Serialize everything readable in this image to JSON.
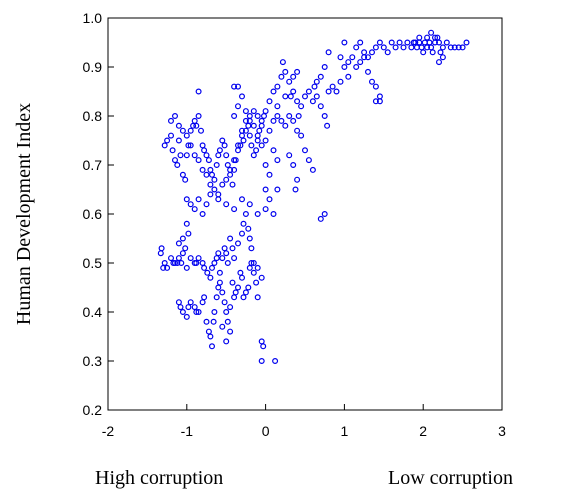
{
  "chart_data": {
    "type": "scatter",
    "ylabel": "Human Development Index",
    "xlim": [
      -2,
      3
    ],
    "ylim": [
      0.2,
      1.0
    ],
    "xticks": [
      "-2",
      "-1",
      "0",
      "1",
      "2",
      "3"
    ],
    "yticks": [
      "0.2",
      "0.3",
      "0.4",
      "0.5",
      "0.6",
      "0.7",
      "0.8",
      "0.9",
      "1.0"
    ],
    "grid": false,
    "marker_color": "#0000ee",
    "below_left_label": "High corruption",
    "below_right_label": "Low corruption",
    "points": [
      [
        -1.33,
        0.52
      ],
      [
        -1.3,
        0.49
      ],
      [
        -1.32,
        0.53
      ],
      [
        -1.28,
        0.5
      ],
      [
        -1.25,
        0.49
      ],
      [
        -1.2,
        0.51
      ],
      [
        -1.17,
        0.5
      ],
      [
        -1.15,
        0.5
      ],
      [
        -1.12,
        0.5
      ],
      [
        -1.1,
        0.51
      ],
      [
        -1.07,
        0.5
      ],
      [
        -1.05,
        0.52
      ],
      [
        -1.0,
        0.49
      ],
      [
        -0.95,
        0.51
      ],
      [
        -0.9,
        0.5
      ],
      [
        -0.88,
        0.5
      ],
      [
        -0.85,
        0.51
      ],
      [
        -0.8,
        0.5
      ],
      [
        -0.78,
        0.49
      ],
      [
        -0.74,
        0.48
      ],
      [
        -1.1,
        0.54
      ],
      [
        -1.05,
        0.55
      ],
      [
        -1.02,
        0.53
      ],
      [
        -1.0,
        0.58
      ],
      [
        -0.98,
        0.56
      ],
      [
        -1.1,
        0.42
      ],
      [
        -1.08,
        0.41
      ],
      [
        -1.05,
        0.4
      ],
      [
        -1.0,
        0.39
      ],
      [
        -0.98,
        0.41
      ],
      [
        -0.95,
        0.42
      ],
      [
        -0.9,
        0.41
      ],
      [
        -0.88,
        0.4
      ],
      [
        -0.85,
        0.4
      ],
      [
        -0.8,
        0.42
      ],
      [
        -0.78,
        0.43
      ],
      [
        -0.75,
        0.38
      ],
      [
        -0.72,
        0.36
      ],
      [
        -0.7,
        0.35
      ],
      [
        -0.68,
        0.33
      ],
      [
        -0.66,
        0.38
      ],
      [
        -0.65,
        0.4
      ],
      [
        -0.62,
        0.43
      ],
      [
        -0.6,
        0.45
      ],
      [
        -0.58,
        0.46
      ],
      [
        -0.55,
        0.44
      ],
      [
        -0.52,
        0.42
      ],
      [
        -0.5,
        0.4
      ],
      [
        -0.48,
        0.38
      ],
      [
        -0.45,
        0.41
      ],
      [
        -0.42,
        0.46
      ],
      [
        -0.4,
        0.43
      ],
      [
        -0.38,
        0.44
      ],
      [
        -0.35,
        0.45
      ],
      [
        -0.32,
        0.48
      ],
      [
        -0.3,
        0.47
      ],
      [
        -0.28,
        0.43
      ],
      [
        -0.25,
        0.44
      ],
      [
        -0.22,
        0.45
      ],
      [
        -0.2,
        0.49
      ],
      [
        -0.18,
        0.5
      ],
      [
        -0.15,
        0.48
      ],
      [
        -0.12,
        0.46
      ],
      [
        -0.1,
        0.43
      ],
      [
        -0.55,
        0.37
      ],
      [
        -0.5,
        0.34
      ],
      [
        -0.45,
        0.36
      ],
      [
        -0.7,
        0.47
      ],
      [
        -0.68,
        0.49
      ],
      [
        -0.65,
        0.5
      ],
      [
        -0.62,
        0.51
      ],
      [
        -0.6,
        0.52
      ],
      [
        -0.58,
        0.48
      ],
      [
        -0.55,
        0.51
      ],
      [
        -0.52,
        0.53
      ],
      [
        -0.5,
        0.52
      ],
      [
        -0.48,
        0.5
      ],
      [
        -0.45,
        0.55
      ],
      [
        -0.42,
        0.53
      ],
      [
        -0.4,
        0.51
      ],
      [
        -0.35,
        0.54
      ],
      [
        -0.3,
        0.56
      ],
      [
        -0.28,
        0.58
      ],
      [
        -0.25,
        0.6
      ],
      [
        -0.22,
        0.57
      ],
      [
        -0.2,
        0.55
      ],
      [
        -0.18,
        0.53
      ],
      [
        -0.15,
        0.5
      ],
      [
        -0.1,
        0.49
      ],
      [
        -0.05,
        0.47
      ],
      [
        -0.05,
        0.34
      ],
      [
        -0.03,
        0.33
      ],
      [
        -0.05,
        0.3
      ],
      [
        0.12,
        0.3
      ],
      [
        -1.28,
        0.74
      ],
      [
        -1.25,
        0.75
      ],
      [
        -1.2,
        0.76
      ],
      [
        -1.18,
        0.73
      ],
      [
        -1.15,
        0.71
      ],
      [
        -1.12,
        0.7
      ],
      [
        -1.1,
        0.75
      ],
      [
        -1.08,
        0.72
      ],
      [
        -1.05,
        0.68
      ],
      [
        -1.02,
        0.67
      ],
      [
        -1.0,
        0.72
      ],
      [
        -0.98,
        0.74
      ],
      [
        -0.95,
        0.77
      ],
      [
        -0.92,
        0.78
      ],
      [
        -0.9,
        0.79
      ],
      [
        -0.88,
        0.78
      ],
      [
        -0.85,
        0.8
      ],
      [
        -0.82,
        0.77
      ],
      [
        -0.8,
        0.74
      ],
      [
        -0.78,
        0.73
      ],
      [
        -0.75,
        0.72
      ],
      [
        -0.72,
        0.71
      ],
      [
        -0.7,
        0.69
      ],
      [
        -0.68,
        0.68
      ],
      [
        -0.65,
        0.67
      ],
      [
        -0.62,
        0.7
      ],
      [
        -0.6,
        0.72
      ],
      [
        -0.58,
        0.73
      ],
      [
        -0.55,
        0.75
      ],
      [
        -0.52,
        0.74
      ],
      [
        -0.5,
        0.72
      ],
      [
        -0.48,
        0.7
      ],
      [
        -0.45,
        0.68
      ],
      [
        -0.42,
        0.66
      ],
      [
        -0.4,
        0.69
      ],
      [
        -0.38,
        0.71
      ],
      [
        -0.35,
        0.73
      ],
      [
        -0.32,
        0.74
      ],
      [
        -0.3,
        0.76
      ],
      [
        -0.28,
        0.75
      ],
      [
        -0.25,
        0.77
      ],
      [
        -0.22,
        0.78
      ],
      [
        -0.2,
        0.76
      ],
      [
        -0.18,
        0.74
      ],
      [
        -0.15,
        0.72
      ],
      [
        -0.12,
        0.73
      ],
      [
        -0.1,
        0.75
      ],
      [
        -0.08,
        0.77
      ],
      [
        -0.05,
        0.78
      ],
      [
        -0.02,
        0.8
      ],
      [
        -1.2,
        0.79
      ],
      [
        -1.15,
        0.8
      ],
      [
        -1.1,
        0.78
      ],
      [
        -1.05,
        0.77
      ],
      [
        -1.0,
        0.76
      ],
      [
        -0.95,
        0.74
      ],
      [
        -0.9,
        0.72
      ],
      [
        -0.85,
        0.71
      ],
      [
        -0.8,
        0.69
      ],
      [
        -0.75,
        0.68
      ],
      [
        -0.7,
        0.66
      ],
      [
        -0.65,
        0.65
      ],
      [
        -0.6,
        0.64
      ],
      [
        -0.55,
        0.66
      ],
      [
        -0.5,
        0.67
      ],
      [
        -0.45,
        0.69
      ],
      [
        -0.4,
        0.71
      ],
      [
        -0.35,
        0.74
      ],
      [
        -0.3,
        0.77
      ],
      [
        -0.25,
        0.79
      ],
      [
        -0.2,
        0.8
      ],
      [
        -0.15,
        0.81
      ],
      [
        -0.1,
        0.8
      ],
      [
        -0.05,
        0.79
      ],
      [
        0.0,
        0.81
      ],
      [
        -1.0,
        0.63
      ],
      [
        -0.95,
        0.62
      ],
      [
        -0.9,
        0.61
      ],
      [
        -0.85,
        0.63
      ],
      [
        -0.8,
        0.6
      ],
      [
        -0.75,
        0.62
      ],
      [
        -0.7,
        0.64
      ],
      [
        -0.6,
        0.63
      ],
      [
        -0.5,
        0.62
      ],
      [
        -0.4,
        0.61
      ],
      [
        -0.3,
        0.63
      ],
      [
        -0.2,
        0.62
      ],
      [
        -0.1,
        0.6
      ],
      [
        0.0,
        0.61
      ],
      [
        0.05,
        0.63
      ],
      [
        0.1,
        0.6
      ],
      [
        0.15,
        0.65
      ],
      [
        -0.85,
        0.85
      ],
      [
        -0.4,
        0.86
      ],
      [
        -0.35,
        0.86
      ],
      [
        -0.4,
        0.8
      ],
      [
        -0.35,
        0.82
      ],
      [
        -0.3,
        0.84
      ],
      [
        -0.25,
        0.81
      ],
      [
        -0.2,
        0.79
      ],
      [
        -0.15,
        0.78
      ],
      [
        -0.1,
        0.76
      ],
      [
        -0.05,
        0.74
      ],
      [
        0.0,
        0.75
      ],
      [
        0.05,
        0.77
      ],
      [
        0.1,
        0.79
      ],
      [
        0.15,
        0.8
      ],
      [
        0.0,
        0.7
      ],
      [
        0.05,
        0.68
      ],
      [
        0.0,
        0.65
      ],
      [
        0.1,
        0.73
      ],
      [
        0.15,
        0.71
      ],
      [
        0.05,
        0.83
      ],
      [
        0.1,
        0.85
      ],
      [
        0.15,
        0.86
      ],
      [
        0.2,
        0.88
      ],
      [
        0.22,
        0.91
      ],
      [
        0.25,
        0.89
      ],
      [
        0.3,
        0.87
      ],
      [
        0.32,
        0.84
      ],
      [
        0.35,
        0.85
      ],
      [
        0.4,
        0.83
      ],
      [
        0.42,
        0.8
      ],
      [
        0.45,
        0.82
      ],
      [
        0.5,
        0.84
      ],
      [
        0.55,
        0.85
      ],
      [
        0.6,
        0.83
      ],
      [
        0.62,
        0.86
      ],
      [
        0.65,
        0.84
      ],
      [
        0.7,
        0.82
      ],
      [
        0.75,
        0.8
      ],
      [
        0.78,
        0.78
      ],
      [
        0.8,
        0.85
      ],
      [
        0.3,
        0.8
      ],
      [
        0.35,
        0.79
      ],
      [
        0.4,
        0.77
      ],
      [
        0.45,
        0.76
      ],
      [
        0.5,
        0.73
      ],
      [
        0.55,
        0.71
      ],
      [
        0.6,
        0.69
      ],
      [
        0.3,
        0.72
      ],
      [
        0.35,
        0.7
      ],
      [
        0.4,
        0.67
      ],
      [
        0.38,
        0.65
      ],
      [
        0.2,
        0.79
      ],
      [
        0.25,
        0.78
      ],
      [
        0.15,
        0.82
      ],
      [
        0.25,
        0.84
      ],
      [
        0.35,
        0.88
      ],
      [
        0.4,
        0.89
      ],
      [
        0.7,
        0.59
      ],
      [
        0.75,
        0.6
      ],
      [
        0.65,
        0.87
      ],
      [
        0.7,
        0.88
      ],
      [
        0.75,
        0.9
      ],
      [
        0.8,
        0.93
      ],
      [
        0.85,
        0.86
      ],
      [
        0.9,
        0.85
      ],
      [
        0.95,
        0.87
      ],
      [
        1.0,
        0.9
      ],
      [
        1.05,
        0.91
      ],
      [
        1.1,
        0.92
      ],
      [
        1.15,
        0.94
      ],
      [
        1.2,
        0.95
      ],
      [
        1.25,
        0.93
      ],
      [
        1.3,
        0.92
      ],
      [
        1.35,
        0.93
      ],
      [
        1.4,
        0.94
      ],
      [
        1.45,
        0.95
      ],
      [
        1.5,
        0.94
      ],
      [
        1.55,
        0.93
      ],
      [
        1.6,
        0.95
      ],
      [
        1.65,
        0.94
      ],
      [
        1.7,
        0.95
      ],
      [
        1.75,
        0.94
      ],
      [
        1.8,
        0.95
      ],
      [
        1.85,
        0.94
      ],
      [
        1.9,
        0.95
      ],
      [
        1.92,
        0.94
      ],
      [
        1.95,
        0.95
      ],
      [
        1.98,
        0.94
      ],
      [
        2.0,
        0.93
      ],
      [
        2.02,
        0.95
      ],
      [
        2.05,
        0.96
      ],
      [
        2.08,
        0.95
      ],
      [
        2.1,
        0.94
      ],
      [
        2.12,
        0.93
      ],
      [
        2.15,
        0.95
      ],
      [
        2.18,
        0.96
      ],
      [
        2.2,
        0.95
      ],
      [
        2.22,
        0.93
      ],
      [
        2.25,
        0.94
      ],
      [
        2.3,
        0.95
      ],
      [
        2.35,
        0.94
      ],
      [
        2.4,
        0.94
      ],
      [
        2.45,
        0.94
      ],
      [
        2.5,
        0.94
      ],
      [
        2.55,
        0.95
      ],
      [
        2.1,
        0.97
      ],
      [
        2.15,
        0.96
      ],
      [
        2.2,
        0.91
      ],
      [
        2.25,
        0.92
      ],
      [
        2.05,
        0.94
      ],
      [
        1.95,
        0.96
      ],
      [
        1.88,
        0.95
      ],
      [
        1.3,
        0.89
      ],
      [
        1.35,
        0.87
      ],
      [
        1.4,
        0.86
      ],
      [
        1.45,
        0.84
      ],
      [
        1.4,
        0.83
      ],
      [
        1.45,
        0.83
      ],
      [
        1.05,
        0.88
      ],
      [
        1.15,
        0.9
      ],
      [
        1.2,
        0.91
      ],
      [
        1.25,
        0.92
      ],
      [
        1.0,
        0.95
      ],
      [
        0.95,
        0.92
      ]
    ]
  }
}
